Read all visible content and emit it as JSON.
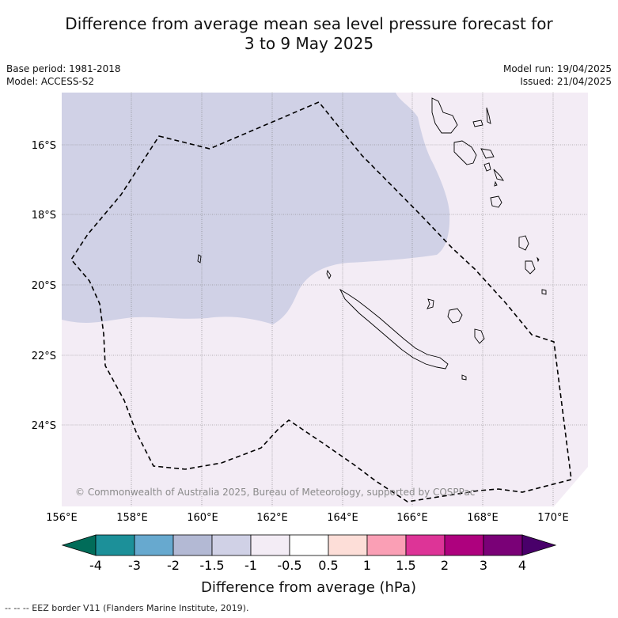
{
  "title": {
    "line1": "Difference from average mean sea level pressure forecast for",
    "line2": "3 to 9 May 2025"
  },
  "meta_left": {
    "base_period": "Base period: 1981-2018",
    "model": "Model: ACCESS-S2"
  },
  "meta_right": {
    "model_run": "Model run: 19/04/2025",
    "issued": "Issued: 21/04/2025"
  },
  "map": {
    "copyright": "© Commonwealth of Australia 2025, Bureau of Meteorology, supported by COSPPac",
    "lon_ticks": [
      "156°E",
      "158°E",
      "160°E",
      "162°E",
      "164°E",
      "166°E",
      "168°E",
      "170°E"
    ],
    "lat_ticks": [
      "16°S",
      "18°S",
      "20°S",
      "22°S",
      "24°S"
    ],
    "regions": [
      {
        "range": "-1.5 to -1",
        "color": "#d0d1e6",
        "area": "north-west"
      },
      {
        "range": "-1 to -0.5",
        "color": "#f3ecf5",
        "area": "south-east"
      }
    ],
    "colors": {
      "land_outline": "#000000",
      "eez_border": "#000000",
      "grid": "#777777"
    }
  },
  "colorbar": {
    "label": "Difference from average (hPa)",
    "tick_labels": [
      "-4",
      "-3",
      "-2",
      "-1.5",
      "-1",
      "-0.5",
      "0.5",
      "1",
      "1.5",
      "2",
      "3",
      "4"
    ],
    "under_color": "#016c59",
    "over_color": "#49006a",
    "bins": [
      "#1c9099",
      "#67a9cf",
      "#b3b9d4",
      "#d0d1e6",
      "#f3ecf5",
      "#ffffff",
      "#fdded8",
      "#fa9fb5",
      "#dd3497",
      "#ae017e",
      "#7a0177"
    ]
  },
  "footnote": "-- -- -- EEZ border V11 (Flanders Marine Institute, 2019)."
}
